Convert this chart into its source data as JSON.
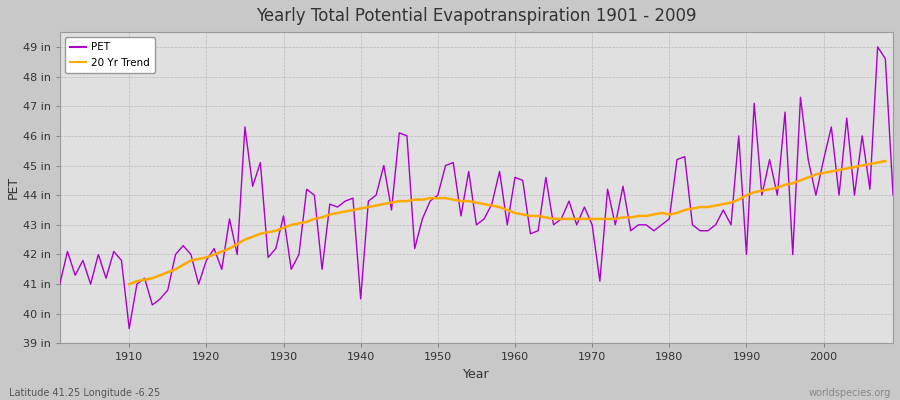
{
  "title": "Yearly Total Potential Evapotranspiration 1901 - 2009",
  "xlabel": "Year",
  "ylabel": "PET",
  "subtitle_left": "Latitude 41.25 Longitude -6.25",
  "subtitle_right": "worldspecies.org",
  "bg_color": "#c8c8c8",
  "plot_bg_color": "#e0e0e0",
  "pet_color": "#aa00cc",
  "trend_color": "#ffaa00",
  "ylim_min": 39,
  "ylim_max": 49.5,
  "ytick_labels": [
    "39 in",
    "40 in",
    "41 in",
    "42 in",
    "43 in",
    "44 in",
    "45 in",
    "46 in",
    "47 in",
    "48 in",
    "49 in"
  ],
  "ytick_values": [
    39,
    40,
    41,
    42,
    43,
    44,
    45,
    46,
    47,
    48,
    49
  ],
  "xtick_values": [
    1910,
    1920,
    1930,
    1940,
    1950,
    1960,
    1970,
    1980,
    1990,
    2000
  ],
  "years": [
    1901,
    1902,
    1903,
    1904,
    1905,
    1906,
    1907,
    1908,
    1909,
    1910,
    1911,
    1912,
    1913,
    1914,
    1915,
    1916,
    1917,
    1918,
    1919,
    1920,
    1921,
    1922,
    1923,
    1924,
    1925,
    1926,
    1927,
    1928,
    1929,
    1930,
    1931,
    1932,
    1933,
    1934,
    1935,
    1936,
    1937,
    1938,
    1939,
    1940,
    1941,
    1942,
    1943,
    1944,
    1945,
    1946,
    1947,
    1948,
    1949,
    1950,
    1951,
    1952,
    1953,
    1954,
    1955,
    1956,
    1957,
    1958,
    1959,
    1960,
    1961,
    1962,
    1963,
    1964,
    1965,
    1966,
    1967,
    1968,
    1969,
    1970,
    1971,
    1972,
    1973,
    1974,
    1975,
    1976,
    1977,
    1978,
    1979,
    1980,
    1981,
    1982,
    1983,
    1984,
    1985,
    1986,
    1987,
    1988,
    1989,
    1990,
    1991,
    1992,
    1993,
    1994,
    1995,
    1996,
    1997,
    1998,
    1999,
    2000,
    2001,
    2002,
    2003,
    2004,
    2005,
    2006,
    2007,
    2008,
    2009
  ],
  "pet_values": [
    41.0,
    42.1,
    41.3,
    41.8,
    41.0,
    42.0,
    41.2,
    42.1,
    41.8,
    39.5,
    41.0,
    41.2,
    40.3,
    40.5,
    40.8,
    42.0,
    42.3,
    42.0,
    41.0,
    41.8,
    42.2,
    41.5,
    43.2,
    42.0,
    46.3,
    44.3,
    45.1,
    41.9,
    42.2,
    43.3,
    41.5,
    42.0,
    44.2,
    44.0,
    41.5,
    43.7,
    43.6,
    43.8,
    43.9,
    40.5,
    43.8,
    44.0,
    45.0,
    43.5,
    46.1,
    46.0,
    42.2,
    43.2,
    43.8,
    44.0,
    45.0,
    45.1,
    43.3,
    44.8,
    43.0,
    43.2,
    43.7,
    44.8,
    43.0,
    44.6,
    44.5,
    42.7,
    42.8,
    44.6,
    43.0,
    43.2,
    43.8,
    43.0,
    43.6,
    43.0,
    41.1,
    44.2,
    43.0,
    44.3,
    42.8,
    43.0,
    43.0,
    42.8,
    43.0,
    43.2,
    45.2,
    45.3,
    43.0,
    42.8,
    42.8,
    43.0,
    43.5,
    43.0,
    46.0,
    42.0,
    47.1,
    44.0,
    45.2,
    44.0,
    46.8,
    42.0,
    47.3,
    45.2,
    44.0,
    45.2,
    46.3,
    44.0,
    46.6,
    44.0,
    46.0,
    44.2,
    49.0,
    48.6,
    44.0
  ],
  "trend_years": [
    1910,
    1911,
    1912,
    1913,
    1914,
    1915,
    1916,
    1917,
    1918,
    1919,
    1920,
    1921,
    1922,
    1923,
    1924,
    1925,
    1926,
    1927,
    1928,
    1929,
    1930,
    1931,
    1932,
    1933,
    1934,
    1935,
    1936,
    1937,
    1938,
    1939,
    1940,
    1941,
    1942,
    1943,
    1944,
    1945,
    1946,
    1947,
    1948,
    1949,
    1950,
    1951,
    1952,
    1953,
    1954,
    1955,
    1956,
    1957,
    1958,
    1959,
    1960,
    1961,
    1962,
    1963,
    1964,
    1965,
    1966,
    1967,
    1968,
    1969,
    1970,
    1971,
    1972,
    1973,
    1974,
    1975,
    1976,
    1977,
    1978,
    1979,
    1980,
    1981,
    1982,
    1983,
    1984,
    1985,
    1986,
    1987,
    1988,
    1989,
    1990,
    1991,
    1992,
    1993,
    1994,
    1995,
    1996,
    1997,
    1998,
    1999,
    2000,
    2001,
    2002,
    2003,
    2004,
    2005,
    2006,
    2007,
    2008
  ],
  "trend_values": [
    41.0,
    41.1,
    41.15,
    41.2,
    41.3,
    41.4,
    41.5,
    41.65,
    41.8,
    41.85,
    41.9,
    42.0,
    42.1,
    42.2,
    42.35,
    42.5,
    42.6,
    42.7,
    42.75,
    42.8,
    42.9,
    43.0,
    43.05,
    43.1,
    43.2,
    43.25,
    43.35,
    43.4,
    43.45,
    43.5,
    43.55,
    43.6,
    43.65,
    43.7,
    43.75,
    43.8,
    43.8,
    43.85,
    43.85,
    43.9,
    43.9,
    43.9,
    43.85,
    43.8,
    43.8,
    43.75,
    43.7,
    43.65,
    43.6,
    43.5,
    43.4,
    43.35,
    43.3,
    43.3,
    43.25,
    43.2,
    43.2,
    43.2,
    43.2,
    43.2,
    43.2,
    43.2,
    43.2,
    43.2,
    43.25,
    43.25,
    43.3,
    43.3,
    43.35,
    43.4,
    43.35,
    43.4,
    43.5,
    43.55,
    43.6,
    43.6,
    43.65,
    43.7,
    43.75,
    43.85,
    44.0,
    44.1,
    44.15,
    44.2,
    44.25,
    44.35,
    44.4,
    44.5,
    44.6,
    44.7,
    44.75,
    44.8,
    44.85,
    44.9,
    44.95,
    45.0,
    45.05,
    45.1,
    45.15
  ]
}
